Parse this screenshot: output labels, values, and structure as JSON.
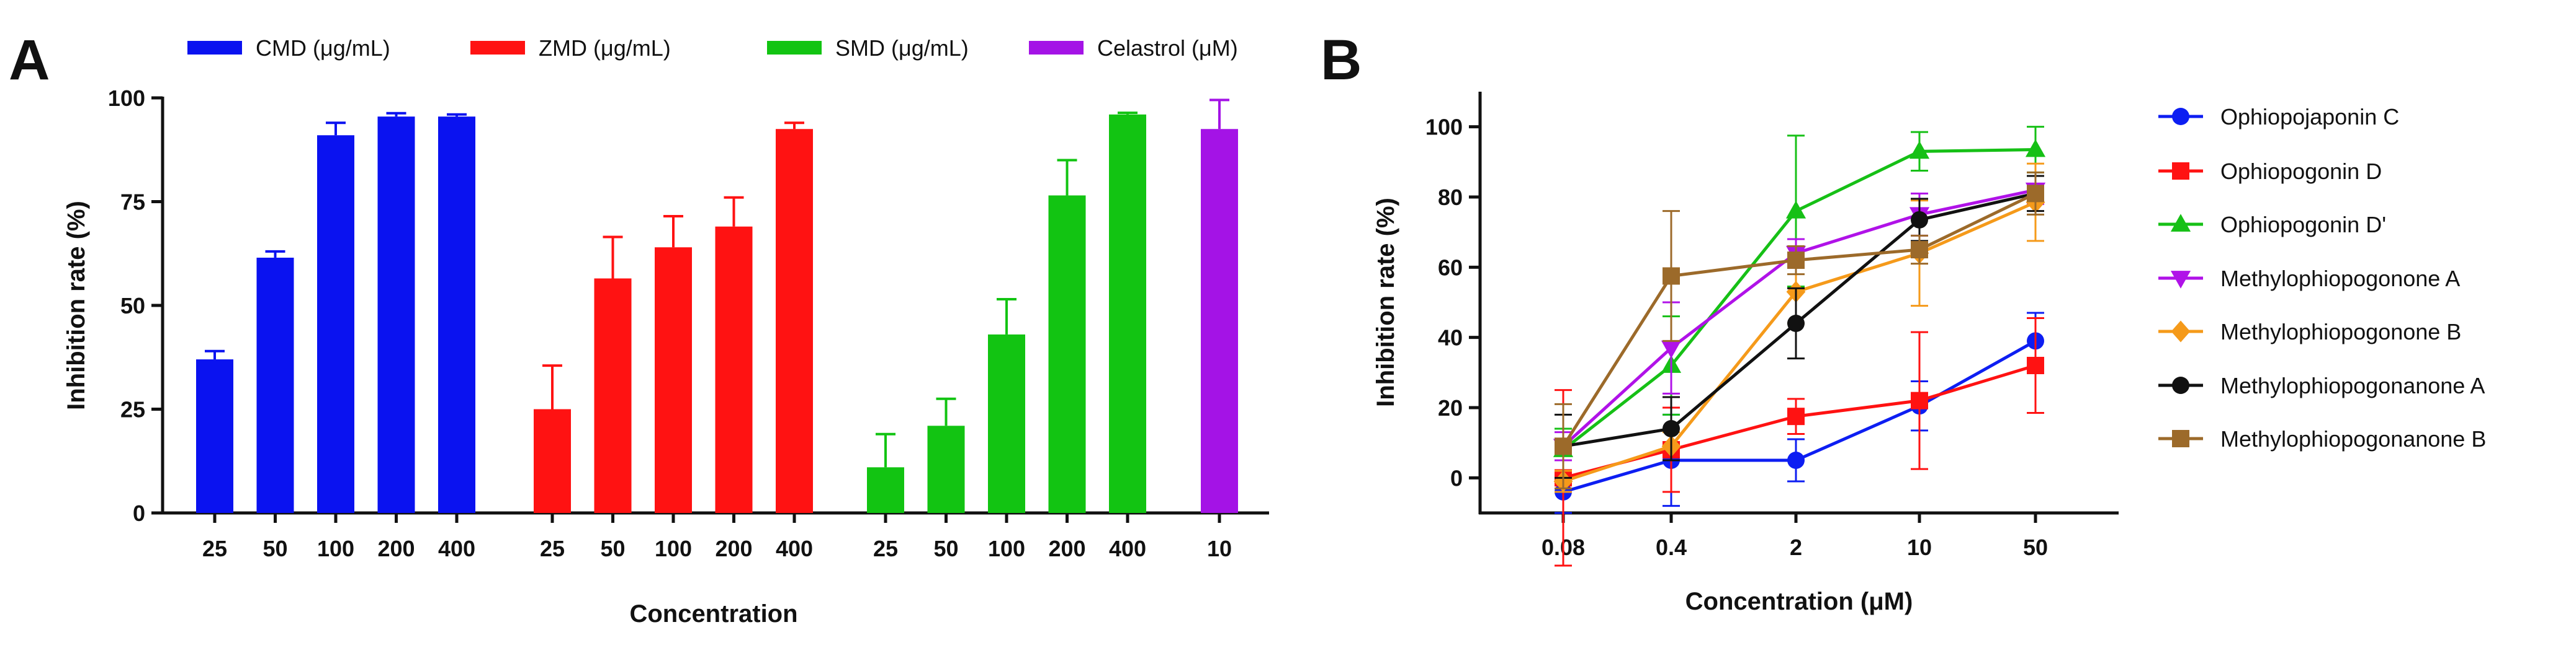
{
  "panels": {
    "a_label": "A",
    "b_label": "B"
  },
  "chart_data": [
    {
      "type": "bar",
      "panel": "A",
      "title": "",
      "xlabel": "Concentration",
      "ylabel": "Inhibition rate (%)",
      "ylim": [
        0,
        100
      ],
      "yticks": [
        0,
        25,
        50,
        75,
        100
      ],
      "grid": false,
      "legend_position": "top",
      "groups": [
        {
          "name": "CMD (μg/mL)",
          "color": "#0a12f0",
          "categories": [
            "25",
            "50",
            "100",
            "200",
            "400"
          ],
          "values": [
            37,
            61.5,
            91,
            95.5,
            95.5
          ],
          "errors": [
            2,
            1.5,
            3,
            0.8,
            0.5
          ]
        },
        {
          "name": "ZMD (μg/mL)",
          "color": "#ff1212",
          "categories": [
            "25",
            "50",
            "100",
            "200",
            "400"
          ],
          "values": [
            25,
            56.5,
            64,
            69,
            92.5
          ],
          "errors": [
            10.5,
            10,
            7.5,
            7,
            1.5
          ]
        },
        {
          "name": "SMD (μg/mL)",
          "color": "#12c412",
          "categories": [
            "25",
            "50",
            "100",
            "200",
            "400"
          ],
          "values": [
            11,
            21,
            43,
            76.5,
            96
          ],
          "errors": [
            8,
            6.5,
            8.5,
            8.5,
            0.4
          ]
        },
        {
          "name": "Celastrol (μM)",
          "color": "#a413e6",
          "categories": [
            "10"
          ],
          "values": [
            92.5
          ],
          "errors": [
            7
          ]
        }
      ]
    },
    {
      "type": "line",
      "panel": "B",
      "title": "",
      "xlabel": "Concentration (μM)",
      "ylabel": "Inhibition rate (%)",
      "x": [
        "0.08",
        "0.4",
        "2",
        "10",
        "50"
      ],
      "ylim": [
        -10,
        110
      ],
      "yticks": [
        0,
        20,
        40,
        60,
        80,
        100
      ],
      "grid": false,
      "legend_position": "right",
      "series": [
        {
          "name": "Ophiopojaponin C",
          "color": "#0d1ef2",
          "marker": "circle",
          "values": [
            -4,
            5,
            5,
            20.5,
            39
          ],
          "errors": [
            6,
            13,
            6,
            7,
            8
          ]
        },
        {
          "name": "Ophiopogonin D",
          "color": "#ff1212",
          "marker": "square",
          "values": [
            0,
            8,
            17.5,
            22,
            32
          ],
          "errors": [
            25,
            12,
            5,
            19.5,
            13.5
          ]
        },
        {
          "name": "Ophiopogonin D'",
          "color": "#16c016",
          "marker": "triangle-up",
          "values": [
            8,
            32,
            76,
            93,
            93.5
          ],
          "errors": [
            6,
            14,
            21.5,
            5.5,
            6.5
          ]
        },
        {
          "name": "Methylophiopogonone A",
          "color": "#b012e8",
          "marker": "triangle-down",
          "values": [
            9,
            37,
            64,
            75,
            82
          ],
          "errors": [
            4,
            13,
            4,
            6,
            4
          ]
        },
        {
          "name": "Methylophiopogonone B",
          "color": "#f59a1a",
          "marker": "diamond",
          "values": [
            -1,
            9,
            53,
            64,
            78.5
          ],
          "errors": [
            3,
            4,
            9,
            15,
            11
          ]
        },
        {
          "name": "Methylophiopogonanone A",
          "color": "#111111",
          "marker": "circle",
          "values": [
            9,
            14,
            44,
            73.5,
            81
          ],
          "errors": [
            9,
            9,
            10,
            6,
            5
          ]
        },
        {
          "name": "Methylophiopogonanone B",
          "color": "#9c6a2a",
          "marker": "square",
          "values": [
            9,
            57.5,
            62,
            65,
            81
          ],
          "errors": [
            12,
            18.5,
            4,
            4,
            6
          ]
        }
      ]
    }
  ]
}
